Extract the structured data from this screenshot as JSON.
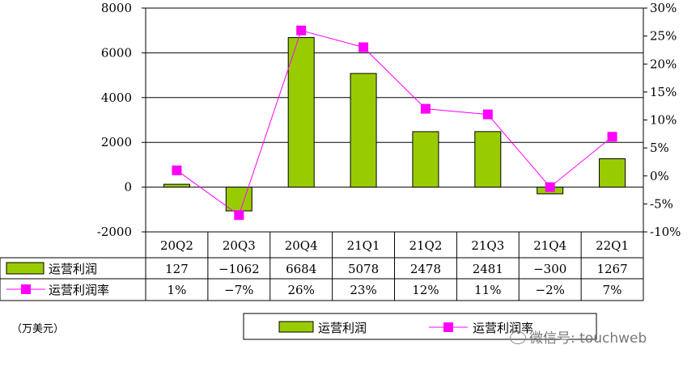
{
  "chart_data": {
    "type": "bar",
    "categories": [
      "20Q2",
      "20Q3",
      "20Q4",
      "21Q1",
      "21Q2",
      "21Q3",
      "21Q4",
      "22Q1"
    ],
    "series": [
      {
        "name": "运营利润",
        "type": "bar",
        "axis": "left",
        "color": "#99cc00",
        "values": [
          127,
          -1062,
          6684,
          5078,
          2478,
          2481,
          -300,
          1267
        ],
        "table_labels": [
          "127",
          "−1062",
          "6684",
          "5078",
          "2478",
          "2481",
          "−300",
          "1267"
        ]
      },
      {
        "name": "运营利润率",
        "type": "line",
        "axis": "right",
        "color": "#ff00ff",
        "values": [
          1,
          -7,
          26,
          23,
          12,
          11,
          -2,
          7
        ],
        "table_labels": [
          "1%",
          "−7%",
          "26%",
          "23%",
          "12%",
          "11%",
          "−2%",
          "7%"
        ]
      }
    ],
    "yleft": {
      "lim": [
        -2000,
        8000
      ],
      "ticks": [
        "8000",
        "6000",
        "4000",
        "2000",
        "0",
        "-2000"
      ]
    },
    "yright": {
      "lim": [
        -10,
        30
      ],
      "ticks": [
        "30%",
        "25%",
        "20%",
        "15%",
        "10%",
        "5%",
        "0%",
        "-5%",
        "-10%"
      ]
    },
    "grid": true,
    "legend": "bottom",
    "data_table": true,
    "unit_label": "（万美元）"
  },
  "watermark": "微信号: touchweb"
}
